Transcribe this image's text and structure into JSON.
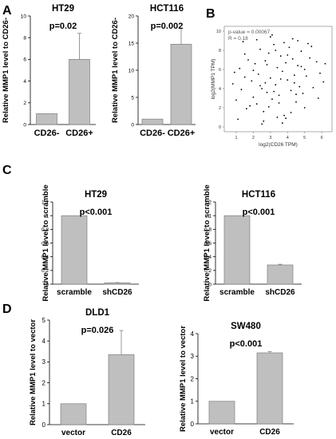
{
  "panels": {
    "A": "A",
    "B": "B",
    "C": "C",
    "D": "D"
  },
  "colors": {
    "bar_fill": "#bfbfbf",
    "bar_stroke": "#7f7f7f",
    "axis": "#000000",
    "scatter_point": "#000000",
    "scatter_annotation": "#555555"
  },
  "chart_data": [
    {
      "id": "ht29_a",
      "panel": "A",
      "type": "bar",
      "title": "HT29",
      "annotation": "p=0.02",
      "ylabel": "Relative MMP1 level to CD26-",
      "categories": [
        "CD26-",
        "CD26+"
      ],
      "values": [
        1,
        6
      ],
      "errors": [
        0,
        2.4
      ],
      "ylim": [
        0,
        10
      ],
      "yticks": [
        0,
        2,
        4,
        6,
        8,
        10
      ]
    },
    {
      "id": "hct116_a",
      "panel": "A",
      "type": "bar",
      "title": "HCT116",
      "annotation": "p=0.002",
      "ylabel": "Relative MMP1 level to CD26-",
      "categories": [
        "CD26-",
        "CD26+"
      ],
      "values": [
        1,
        14.8
      ],
      "errors": [
        0,
        2.9
      ],
      "ylim": [
        0,
        20
      ],
      "yticks": [
        0,
        5,
        10,
        15,
        20
      ]
    },
    {
      "id": "scatter_b",
      "panel": "B",
      "type": "scatter",
      "xlabel": "log2(CD26 TPM)",
      "ylabel": "log2(MMP1 TPM)",
      "annotation_lines": [
        "p-value = 0.00067",
        "R = 0.18"
      ],
      "xlim": [
        0.3,
        6.6
      ],
      "ylim": [
        -0.5,
        10.5
      ],
      "xticks": [
        1,
        2,
        3,
        4,
        5,
        6
      ],
      "yticks": [
        0,
        2,
        4,
        6,
        8,
        10
      ],
      "grid": false,
      "x": [
        0.8,
        1.0,
        1.2,
        1.3,
        1.5,
        1.6,
        1.7,
        1.9,
        2.0,
        2.1,
        2.2,
        2.3,
        2.4,
        2.5,
        2.6,
        2.7,
        2.8,
        2.9,
        3.0,
        3.1,
        3.2,
        3.3,
        3.4,
        3.5,
        3.6,
        3.7,
        3.8,
        3.9,
        4.0,
        4.1,
        4.2,
        4.3,
        4.4,
        4.5,
        4.6,
        4.7,
        4.8,
        4.9,
        5.0,
        5.1,
        5.3,
        5.5,
        5.7,
        5.9,
        6.1,
        1.1,
        1.4,
        1.8,
        2.2,
        2.6,
        3.0,
        3.4,
        3.8,
        4.2,
        4.6,
        5.0,
        5.4,
        5.8,
        2.0,
        2.4,
        2.8,
        3.2,
        3.6,
        4.0,
        4.4,
        4.8,
        2.5,
        3.1,
        3.7,
        4.3,
        1.5,
        2.9,
        3.3,
        3.9,
        4.5,
        5.2,
        0.9,
        6.2,
        2.7,
        3.5
      ],
      "y": [
        4.5,
        2.8,
        6.1,
        3.9,
        5.2,
        1.9,
        7.0,
        4.8,
        3.1,
        6.6,
        2.4,
        5.5,
        8.1,
        4.0,
        1.6,
        6.9,
        3.6,
        7.7,
        5.1,
        2.9,
        8.6,
        4.4,
        6.2,
        3.3,
        7.4,
        5.8,
        1.2,
        6.7,
        4.9,
        8.3,
        3.8,
        7.1,
        5.4,
        2.6,
        6.4,
        4.2,
        7.9,
        3.5,
        6.0,
        5.3,
        7.2,
        4.1,
        6.8,
        5.6,
        4.7,
        0.8,
        8.9,
        2.2,
        9.1,
        0.6,
        9.4,
        1.0,
        8.8,
        1.5,
        9.0,
        2.0,
        8.4,
        3.0,
        5.9,
        4.3,
        6.5,
        3.7,
        5.0,
        7.5,
        4.6,
        6.3,
        0.3,
        9.6,
        0.4,
        9.2,
        7.6,
        2.1,
        8.0,
        0.9,
        3.4,
        8.7,
        5.7,
        6.6,
        4.6,
        2.5
      ]
    },
    {
      "id": "ht29_c",
      "panel": "C",
      "type": "bar",
      "title": "HT29",
      "annotation": "p<0.001",
      "ylabel": "Relative MMP1 level to scramble",
      "categories": [
        "scramble",
        "shCD26"
      ],
      "values": [
        1,
        0.02
      ],
      "errors": [
        0,
        0.004
      ],
      "ylim": [
        0,
        1.2
      ],
      "yticks": [
        0,
        0.2,
        0.4,
        0.6,
        0.8,
        1,
        1.2
      ]
    },
    {
      "id": "hct116_c",
      "panel": "C",
      "type": "bar",
      "title": "HCT116",
      "annotation": "p<0.001",
      "ylabel": "Relative MMP1 level to scramble",
      "categories": [
        "scramble",
        "shCD26"
      ],
      "values": [
        1,
        0.28
      ],
      "errors": [
        0,
        0.01
      ],
      "ylim": [
        0,
        1.2
      ],
      "yticks": [
        0,
        0.2,
        0.4,
        0.6,
        0.8,
        1,
        1.2
      ]
    },
    {
      "id": "dld1_d",
      "panel": "D",
      "type": "bar",
      "title": "DLD1",
      "annotation": "p=0.026",
      "ylabel": "Relative MMP1 level to vector",
      "categories": [
        "vector",
        "CD26"
      ],
      "values": [
        1,
        3.35
      ],
      "errors": [
        0,
        1.15
      ],
      "ylim": [
        0,
        5
      ],
      "yticks": [
        0,
        1,
        2,
        3,
        4,
        5
      ]
    },
    {
      "id": "sw480_d",
      "panel": "D",
      "type": "bar",
      "title": "SW480",
      "annotation": "p<0.001",
      "ylabel": "Relative MMP1 level to vector",
      "categories": [
        "vector",
        "CD26"
      ],
      "values": [
        1,
        3.15
      ],
      "errors": [
        0,
        0.06
      ],
      "ylim": [
        0,
        4
      ],
      "yticks": [
        0,
        1,
        2,
        3,
        4
      ]
    }
  ]
}
